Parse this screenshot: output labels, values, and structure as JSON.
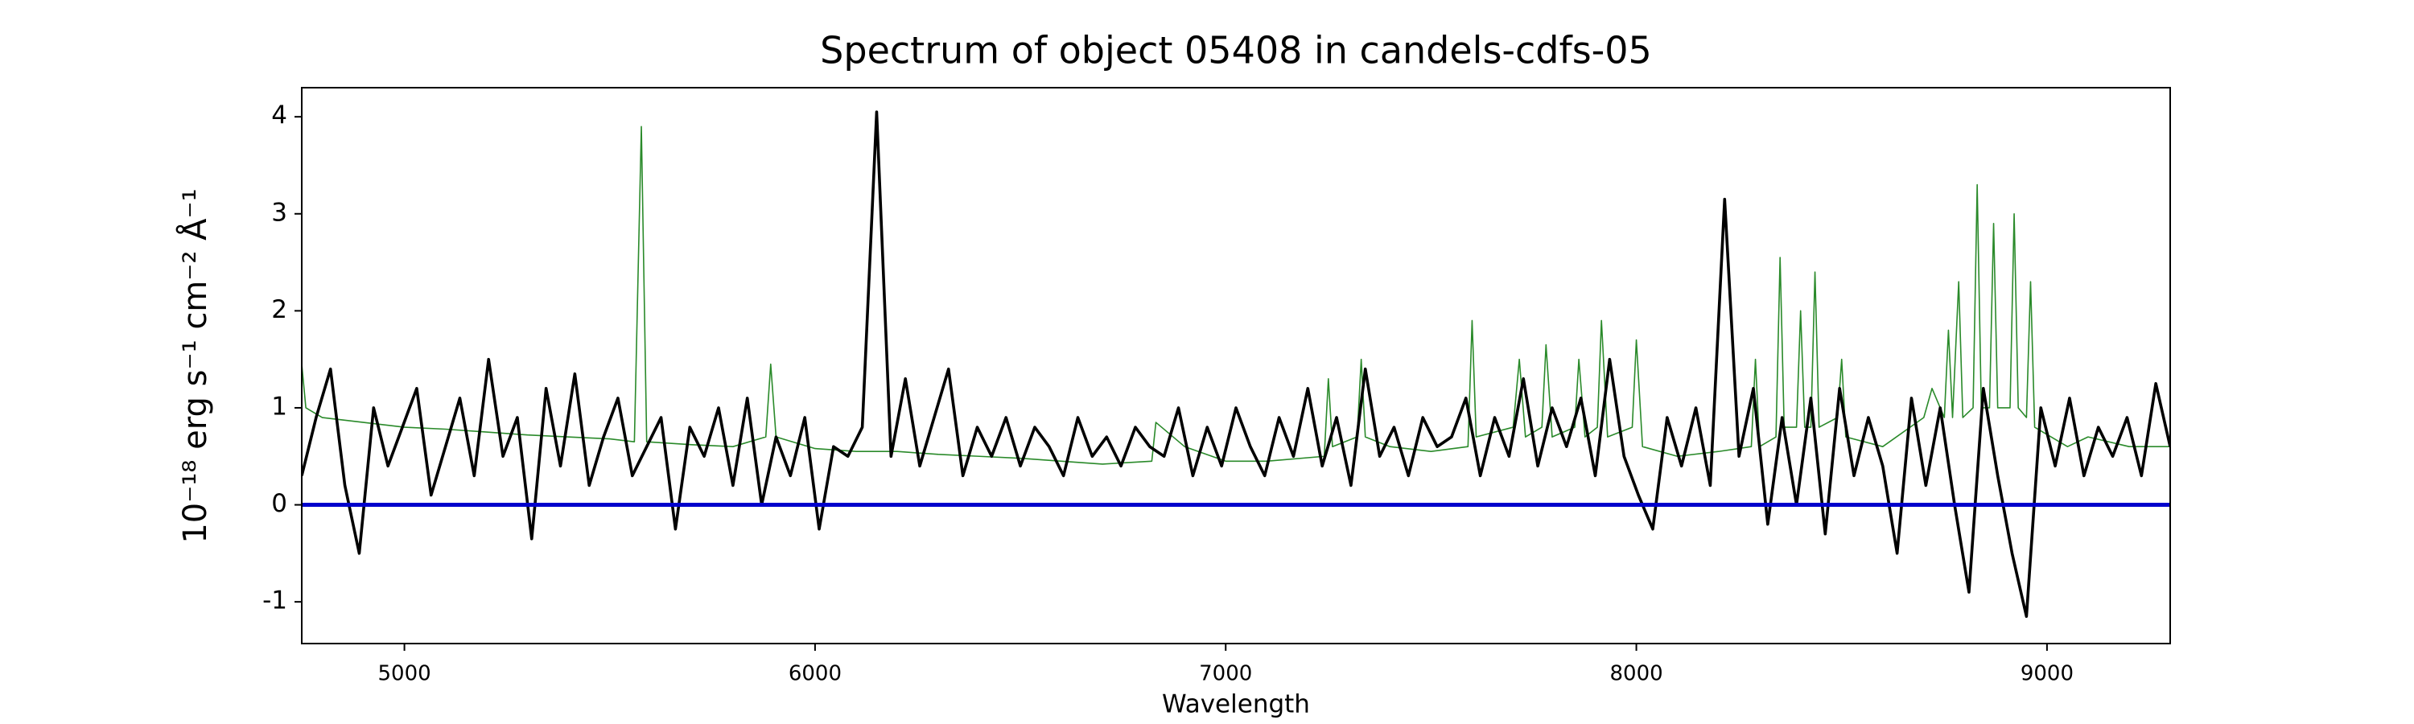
{
  "chart_data": {
    "type": "line",
    "title": "Spectrum of object 05408 in candels-cdfs-05",
    "xlabel": "Wavelength",
    "ylabel": "10⁻¹⁸ erg s⁻¹ cm⁻² Å⁻¹",
    "xlim": [
      4750,
      9300
    ],
    "ylim": [
      -1.43,
      4.3
    ],
    "xticks": [
      5000,
      6000,
      7000,
      8000,
      9000
    ],
    "yticks": [
      -1,
      0,
      1,
      2,
      3,
      4
    ],
    "grid": false,
    "series": [
      {
        "color": "#2a8a2a",
        "width": 1.6,
        "x": [
          4750,
          4760,
          4800,
          4900,
          5000,
          5100,
          5200,
          5300,
          5400,
          5500,
          5560,
          5577,
          5590,
          5700,
          5800,
          5880,
          5892,
          5905,
          6000,
          6100,
          6200,
          6300,
          6400,
          6500,
          6600,
          6700,
          6820,
          6830,
          6900,
          7000,
          7100,
          7240,
          7250,
          7260,
          7320,
          7330,
          7340,
          7400,
          7500,
          7590,
          7600,
          7610,
          7700,
          7715,
          7730,
          7770,
          7780,
          7795,
          7850,
          7860,
          7875,
          7905,
          7915,
          7930,
          7990,
          8000,
          8015,
          8100,
          8200,
          8280,
          8290,
          8300,
          8340,
          8350,
          8360,
          8390,
          8400,
          8410,
          8425,
          8435,
          8445,
          8490,
          8500,
          8510,
          8600,
          8700,
          8720,
          8750,
          8760,
          8770,
          8785,
          8795,
          8820,
          8830,
          8840,
          8860,
          8870,
          8880,
          8910,
          8920,
          8930,
          8950,
          8960,
          8970,
          9050,
          9100,
          9200,
          9300
        ],
        "values": [
          1.45,
          1.0,
          0.9,
          0.85,
          0.8,
          0.78,
          0.75,
          0.72,
          0.7,
          0.68,
          0.65,
          3.9,
          0.65,
          0.62,
          0.6,
          0.7,
          1.45,
          0.7,
          0.58,
          0.55,
          0.55,
          0.52,
          0.5,
          0.48,
          0.45,
          0.42,
          0.45,
          0.85,
          0.6,
          0.45,
          0.45,
          0.5,
          1.3,
          0.6,
          0.7,
          1.5,
          0.7,
          0.6,
          0.55,
          0.6,
          1.9,
          0.7,
          0.8,
          1.5,
          0.7,
          0.8,
          1.65,
          0.7,
          0.8,
          1.5,
          0.7,
          0.8,
          1.9,
          0.7,
          0.8,
          1.7,
          0.6,
          0.5,
          0.55,
          0.6,
          1.5,
          0.6,
          0.7,
          2.55,
          0.8,
          0.8,
          2.0,
          0.8,
          0.8,
          2.4,
          0.8,
          0.9,
          1.5,
          0.7,
          0.6,
          0.9,
          1.2,
          0.9,
          1.8,
          0.9,
          2.3,
          0.9,
          1.0,
          3.3,
          1.0,
          1.0,
          2.9,
          1.0,
          1.0,
          3.0,
          1.0,
          0.9,
          2.3,
          0.8,
          0.6,
          0.7,
          0.6,
          0.6
        ]
      },
      {
        "color": "#000000",
        "width": 3.6,
        "x": [
          4750,
          4785,
          4820,
          4855,
          4890,
          4925,
          4960,
          4995,
          5030,
          5065,
          5100,
          5135,
          5170,
          5205,
          5240,
          5275,
          5310,
          5345,
          5380,
          5415,
          5450,
          5485,
          5520,
          5555,
          5590,
          5625,
          5660,
          5695,
          5730,
          5765,
          5800,
          5835,
          5870,
          5905,
          5940,
          5975,
          6010,
          6045,
          6080,
          6115,
          6150,
          6185,
          6220,
          6255,
          6290,
          6325,
          6360,
          6395,
          6430,
          6465,
          6500,
          6535,
          6570,
          6605,
          6640,
          6675,
          6710,
          6745,
          6780,
          6815,
          6850,
          6885,
          6920,
          6955,
          6990,
          7025,
          7060,
          7095,
          7130,
          7165,
          7200,
          7235,
          7270,
          7305,
          7340,
          7375,
          7410,
          7445,
          7480,
          7515,
          7550,
          7585,
          7620,
          7655,
          7690,
          7725,
          7760,
          7795,
          7830,
          7865,
          7900,
          7935,
          7970,
          8005,
          8040,
          8075,
          8110,
          8145,
          8180,
          8215,
          8250,
          8285,
          8320,
          8355,
          8390,
          8425,
          8460,
          8495,
          8530,
          8565,
          8600,
          8635,
          8670,
          8705,
          8740,
          8775,
          8810,
          8845,
          8880,
          8915,
          8950,
          8985,
          9020,
          9055,
          9090,
          9125,
          9160,
          9195,
          9230,
          9265,
          9300
        ],
        "values": [
          0.3,
          0.9,
          1.4,
          0.2,
          -0.5,
          1.0,
          0.4,
          0.8,
          1.2,
          0.1,
          0.6,
          1.1,
          0.3,
          1.5,
          0.5,
          0.9,
          -0.35,
          1.2,
          0.4,
          1.35,
          0.2,
          0.7,
          1.1,
          0.3,
          0.6,
          0.9,
          -0.25,
          0.8,
          0.5,
          1.0,
          0.2,
          1.1,
          0.0,
          0.7,
          0.3,
          0.9,
          -0.25,
          0.6,
          0.5,
          0.8,
          4.05,
          0.5,
          1.3,
          0.4,
          0.9,
          1.4,
          0.3,
          0.8,
          0.5,
          0.9,
          0.4,
          0.8,
          0.6,
          0.3,
          0.9,
          0.5,
          0.7,
          0.4,
          0.8,
          0.6,
          0.5,
          1.0,
          0.3,
          0.8,
          0.4,
          1.0,
          0.6,
          0.3,
          0.9,
          0.5,
          1.2,
          0.4,
          0.9,
          0.2,
          1.4,
          0.5,
          0.8,
          0.3,
          0.9,
          0.6,
          0.7,
          1.1,
          0.3,
          0.9,
          0.5,
          1.3,
          0.4,
          1.0,
          0.6,
          1.1,
          0.3,
          1.5,
          0.5,
          0.1,
          -0.25,
          0.9,
          0.4,
          1.0,
          0.2,
          3.15,
          0.5,
          1.2,
          -0.2,
          0.9,
          0.0,
          1.1,
          -0.3,
          1.2,
          0.3,
          0.9,
          0.4,
          -0.5,
          1.1,
          0.2,
          1.0,
          0.0,
          -0.9,
          1.2,
          0.3,
          -0.5,
          -1.15,
          1.0,
          0.4,
          1.1,
          0.3,
          0.8,
          0.5,
          0.9,
          0.3,
          1.25,
          0.6
        ]
      },
      {
        "color": "#0000cc",
        "width": 5,
        "x": [
          4750,
          9300
        ],
        "values": [
          0,
          0
        ]
      }
    ]
  }
}
